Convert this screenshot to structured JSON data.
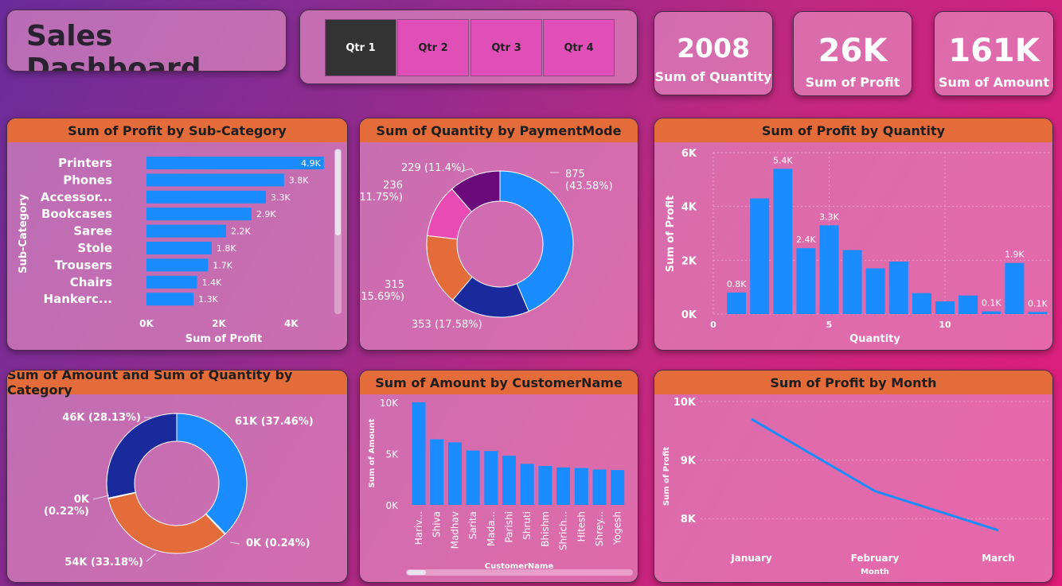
{
  "header": {
    "title": "Sales Dashboard"
  },
  "slicer": {
    "quarters": [
      "Qtr 1",
      "Qtr 2",
      "Qtr 3",
      "Qtr 4"
    ],
    "selected": "Qtr 1"
  },
  "kpis": [
    {
      "value": "2008",
      "label": "Sum of Quantity"
    },
    {
      "value": "26K",
      "label": "Sum of Profit"
    },
    {
      "value": "161K",
      "label": "Sum of Amount"
    }
  ],
  "colors": {
    "blue": "#1a8cff",
    "orange": "#e46c3b",
    "navy": "#1a2a9c",
    "magenta": "#e84cb4",
    "purple": "#6a0a7a",
    "header": "#e46c3b"
  },
  "panel_titles": {
    "subcat": "Sum of Profit by Sub-Category",
    "payment": "Sum of Quantity by PaymentMode",
    "profitqty": "Sum of Profit by Quantity",
    "category": "Sum of Amount and Sum of Quantity by Category",
    "customer": "Sum of Amount by CustomerName",
    "month": "Sum of Profit by Month"
  },
  "chart_data": [
    {
      "id": "subcat",
      "type": "bar",
      "orientation": "horizontal",
      "title": "Sum of Profit by Sub-Category",
      "xlabel": "Sum of Profit",
      "ylabel": "Sub-Category",
      "categories": [
        "Printers",
        "Phones",
        "Accessor...",
        "Bookcases",
        "Saree",
        "Stole",
        "Trousers",
        "Chairs",
        "Hankerc..."
      ],
      "values": [
        4900,
        3800,
        3300,
        2900,
        2200,
        1800,
        1700,
        1400,
        1300
      ],
      "data_labels": [
        "4.9K",
        "3.8K",
        "3.3K",
        "2.9K",
        "2.2K",
        "1.8K",
        "1.7K",
        "1.4K",
        "1.3K"
      ],
      "xticks": [
        "0K",
        "2K",
        "4K"
      ],
      "xlim": [
        0,
        5000
      ]
    },
    {
      "id": "payment",
      "type": "pie",
      "subtype": "donut",
      "title": "Sum of Quantity by PaymentMode",
      "values": [
        875,
        353,
        315,
        236,
        229
      ],
      "labels": [
        "875\n(43.58%)",
        "353 (17.58%)",
        "315\n(15.69%)",
        "236\n(11.75%)",
        "229 (11.4%)"
      ],
      "colors": [
        "#1a8cff",
        "#1a2a9c",
        "#e46c3b",
        "#e84cb4",
        "#6a0a7a"
      ]
    },
    {
      "id": "profitqty",
      "type": "bar",
      "title": "Sum of Profit by Quantity",
      "xlabel": "Quantity",
      "ylabel": "Sum of Profit",
      "x": [
        1,
        2,
        3,
        4,
        5,
        6,
        7,
        8,
        9,
        10,
        11,
        12,
        13,
        14
      ],
      "values": [
        800,
        4300,
        5400,
        2450,
        3300,
        2380,
        1700,
        1950,
        780,
        470,
        690,
        100,
        1900,
        80
      ],
      "data_labels": [
        "0.8K",
        "",
        "5.4K",
        "2.4K",
        "3.3K",
        "",
        "",
        "",
        "",
        "",
        "",
        "0.1K",
        "1.9K",
        "0.1K"
      ],
      "yticks": [
        "0K",
        "2K",
        "4K",
        "6K"
      ],
      "xticks": [
        "0",
        "5",
        "10"
      ],
      "ylim": [
        0,
        6000
      ],
      "grid": true
    },
    {
      "id": "category",
      "type": "pie",
      "subtype": "donut",
      "title": "Sum of Amount and Sum of Quantity by Category",
      "values": [
        37.46,
        0.24,
        33.18,
        0.22,
        28.13
      ],
      "labels": [
        "61K (37.46%)",
        "0K (0.24%)",
        "54K (33.18%)",
        "0K\n(0.22%)",
        "46K (28.13%)"
      ],
      "colors": [
        "#1a8cff",
        "#1a2a9c",
        "#e46c3b",
        "#e84cb4",
        "#1a2a9c"
      ]
    },
    {
      "id": "customer",
      "type": "bar",
      "title": "Sum of Amount by CustomerName",
      "xlabel": "CustomerName",
      "ylabel": "Sum of Amount",
      "categories": [
        "Hariv...",
        "Shiva",
        "Madhav",
        "Sarita",
        "Mada...",
        "Parishi",
        "Shruti",
        "Bhishm",
        "Shrich...",
        "Hitesh",
        "Shrey...",
        "Yogesh"
      ],
      "values": [
        10000,
        6400,
        6100,
        5300,
        5250,
        4800,
        4000,
        3800,
        3650,
        3600,
        3450,
        3400
      ],
      "yticks": [
        "0K",
        "5K",
        "10K"
      ],
      "ylim": [
        0,
        10000
      ]
    },
    {
      "id": "month",
      "type": "line",
      "title": "Sum of Profit by Month",
      "xlabel": "Month",
      "ylabel": "Sum of Profit",
      "categories": [
        "January",
        "February",
        "March"
      ],
      "values": [
        9700,
        8470,
        7800
      ],
      "yticks": [
        "8K",
        "9K",
        "10K"
      ],
      "ylim": [
        7650,
        10000
      ],
      "grid": true
    }
  ]
}
